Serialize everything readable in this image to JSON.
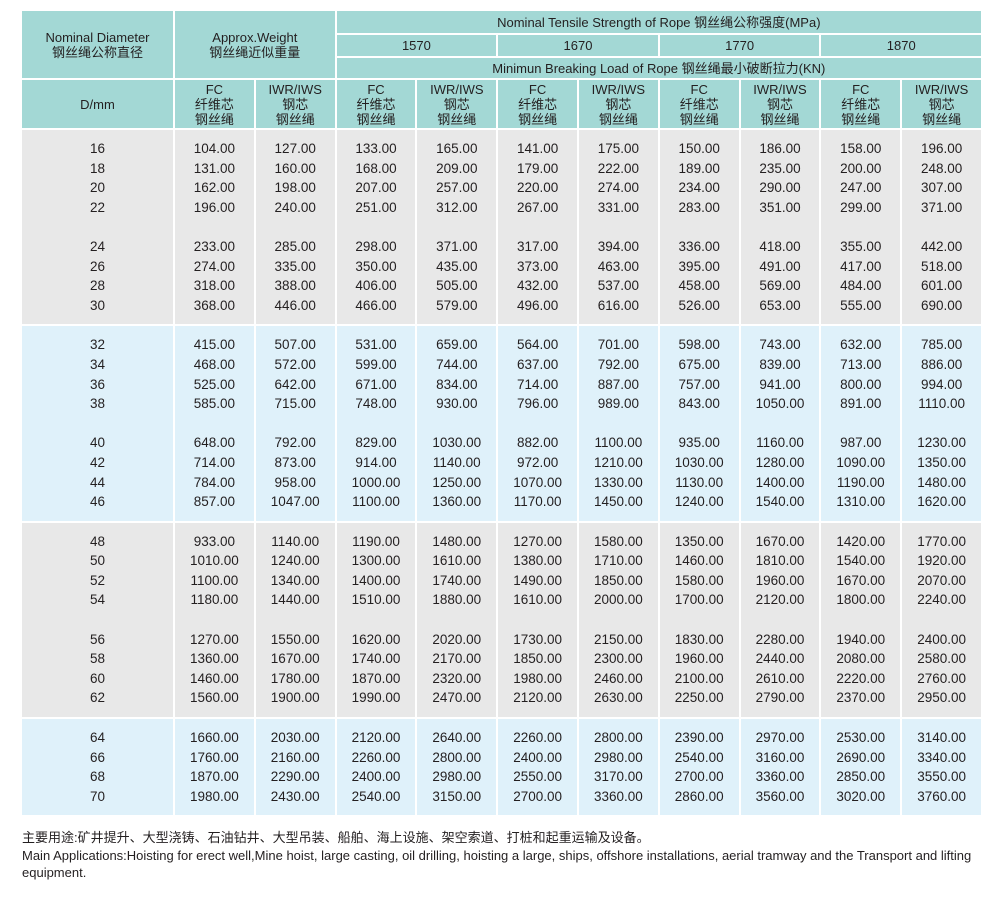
{
  "header": {
    "diameter": "Nominal Diameter",
    "diameter_cn": "钢丝绳公称直径",
    "weight": "Approx.Weight",
    "weight_cn": "钢丝绳近似重量",
    "tensile": "Nominal Tensile Strength of Rope  钢丝绳公称强度(MPa)",
    "grades": [
      "1570",
      "1670",
      "1770",
      "1870"
    ],
    "breaking": "Minimun Breaking Load of Rope  钢丝绳最小破断拉力(KN)",
    "dmm": "D/mm",
    "fc": [
      "FC",
      "纤维芯",
      "钢丝绳"
    ],
    "iwr": [
      "IWR/IWS",
      "钢芯",
      "钢丝绳"
    ]
  },
  "colors": {
    "header": "#a3d8d5",
    "band_gray": "#e8e8e8",
    "band_blue": "#dff1fa"
  },
  "bands": [
    {
      "color": "gray",
      "rows": [
        [
          "16",
          "104.00",
          "127.00",
          "133.00",
          "165.00",
          "141.00",
          "175.00",
          "150.00",
          "186.00",
          "158.00",
          "196.00"
        ],
        [
          "18",
          "131.00",
          "160.00",
          "168.00",
          "209.00",
          "179.00",
          "222.00",
          "189.00",
          "235.00",
          "200.00",
          "248.00"
        ],
        [
          "20",
          "162.00",
          "198.00",
          "207.00",
          "257.00",
          "220.00",
          "274.00",
          "234.00",
          "290.00",
          "247.00",
          "307.00"
        ],
        [
          "22",
          "196.00",
          "240.00",
          "251.00",
          "312.00",
          "267.00",
          "331.00",
          "283.00",
          "351.00",
          "299.00",
          "371.00"
        ],
        [
          "24",
          "233.00",
          "285.00",
          "298.00",
          "371.00",
          "317.00",
          "394.00",
          "336.00",
          "418.00",
          "355.00",
          "442.00"
        ],
        [
          "26",
          "274.00",
          "335.00",
          "350.00",
          "435.00",
          "373.00",
          "463.00",
          "395.00",
          "491.00",
          "417.00",
          "518.00"
        ],
        [
          "28",
          "318.00",
          "388.00",
          "406.00",
          "505.00",
          "432.00",
          "537.00",
          "458.00",
          "569.00",
          "484.00",
          "601.00"
        ],
        [
          "30",
          "368.00",
          "446.00",
          "466.00",
          "579.00",
          "496.00",
          "616.00",
          "526.00",
          "653.00",
          "555.00",
          "690.00"
        ]
      ]
    },
    {
      "color": "blue",
      "rows": [
        [
          "32",
          "415.00",
          "507.00",
          "531.00",
          "659.00",
          "564.00",
          "701.00",
          "598.00",
          "743.00",
          "632.00",
          "785.00"
        ],
        [
          "34",
          "468.00",
          "572.00",
          "599.00",
          "744.00",
          "637.00",
          "792.00",
          "675.00",
          "839.00",
          "713.00",
          "886.00"
        ],
        [
          "36",
          "525.00",
          "642.00",
          "671.00",
          "834.00",
          "714.00",
          "887.00",
          "757.00",
          "941.00",
          "800.00",
          "994.00"
        ],
        [
          "38",
          "585.00",
          "715.00",
          "748.00",
          "930.00",
          "796.00",
          "989.00",
          "843.00",
          "1050.00",
          "891.00",
          "1110.00"
        ],
        [
          "40",
          "648.00",
          "792.00",
          "829.00",
          "1030.00",
          "882.00",
          "1100.00",
          "935.00",
          "1160.00",
          "987.00",
          "1230.00"
        ],
        [
          "42",
          "714.00",
          "873.00",
          "914.00",
          "1140.00",
          "972.00",
          "1210.00",
          "1030.00",
          "1280.00",
          "1090.00",
          "1350.00"
        ],
        [
          "44",
          "784.00",
          "958.00",
          "1000.00",
          "1250.00",
          "1070.00",
          "1330.00",
          "1130.00",
          "1400.00",
          "1190.00",
          "1480.00"
        ],
        [
          "46",
          "857.00",
          "1047.00",
          "1100.00",
          "1360.00",
          "1170.00",
          "1450.00",
          "1240.00",
          "1540.00",
          "1310.00",
          "1620.00"
        ]
      ]
    },
    {
      "color": "gray",
      "rows": [
        [
          "48",
          "933.00",
          "1140.00",
          "1190.00",
          "1480.00",
          "1270.00",
          "1580.00",
          "1350.00",
          "1670.00",
          "1420.00",
          "1770.00"
        ],
        [
          "50",
          "1010.00",
          "1240.00",
          "1300.00",
          "1610.00",
          "1380.00",
          "1710.00",
          "1460.00",
          "1810.00",
          "1540.00",
          "1920.00"
        ],
        [
          "52",
          "1100.00",
          "1340.00",
          "1400.00",
          "1740.00",
          "1490.00",
          "1850.00",
          "1580.00",
          "1960.00",
          "1670.00",
          "2070.00"
        ],
        [
          "54",
          "1180.00",
          "1440.00",
          "1510.00",
          "1880.00",
          "1610.00",
          "2000.00",
          "1700.00",
          "2120.00",
          "1800.00",
          "2240.00"
        ],
        [
          "56",
          "1270.00",
          "1550.00",
          "1620.00",
          "2020.00",
          "1730.00",
          "2150.00",
          "1830.00",
          "2280.00",
          "1940.00",
          "2400.00"
        ],
        [
          "58",
          "1360.00",
          "1670.00",
          "1740.00",
          "2170.00",
          "1850.00",
          "2300.00",
          "1960.00",
          "2440.00",
          "2080.00",
          "2580.00"
        ],
        [
          "60",
          "1460.00",
          "1780.00",
          "1870.00",
          "2320.00",
          "1980.00",
          "2460.00",
          "2100.00",
          "2610.00",
          "2220.00",
          "2760.00"
        ],
        [
          "62",
          "1560.00",
          "1900.00",
          "1990.00",
          "2470.00",
          "2120.00",
          "2630.00",
          "2250.00",
          "2790.00",
          "2370.00",
          "2950.00"
        ]
      ]
    },
    {
      "color": "blue",
      "rows": [
        [
          "64",
          "1660.00",
          "2030.00",
          "2120.00",
          "2640.00",
          "2260.00",
          "2800.00",
          "2390.00",
          "2970.00",
          "2530.00",
          "3140.00"
        ],
        [
          "66",
          "1760.00",
          "2160.00",
          "2260.00",
          "2800.00",
          "2400.00",
          "2980.00",
          "2540.00",
          "3160.00",
          "2690.00",
          "3340.00"
        ],
        [
          "68",
          "1870.00",
          "2290.00",
          "2400.00",
          "2980.00",
          "2550.00",
          "3170.00",
          "2700.00",
          "3360.00",
          "2850.00",
          "3550.00"
        ],
        [
          "70",
          "1980.00",
          "2430.00",
          "2540.00",
          "3150.00",
          "2700.00",
          "3360.00",
          "2860.00",
          "3560.00",
          "3020.00",
          "3760.00"
        ]
      ]
    }
  ],
  "notes": {
    "cn": "主要用途:矿井提升、大型浇铸、石油钻井、大型吊装、船舶、海上设施、架空索道、打桩和起重运输及设备。",
    "en": "Main Applications:Hoisting for erect well,Mine hoist, large casting, oil drilling, hoisting a large, ships, offshore installations, aerial tramway and the Transport and lifting equipment."
  }
}
